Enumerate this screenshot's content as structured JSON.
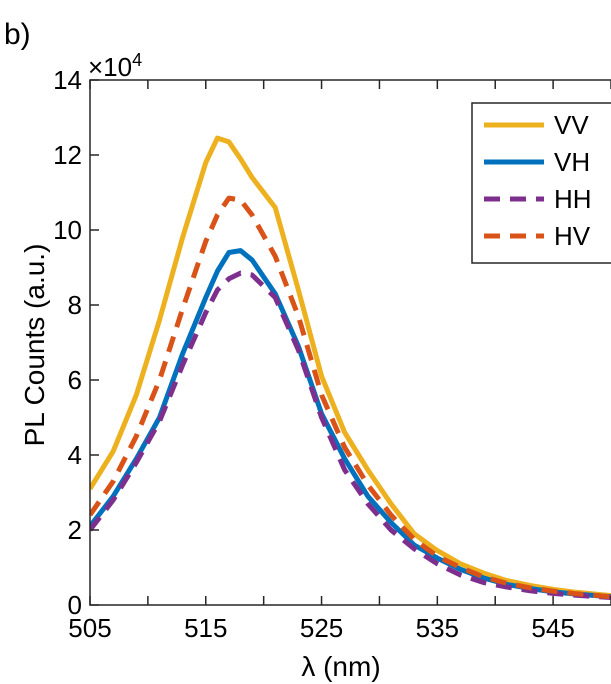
{
  "panel_label": "b)",
  "chart_data": {
    "type": "line",
    "xlabel": "λ (nm)",
    "ylabel": "PL Counts (a.u.)",
    "y_exponent": "×10",
    "y_exponent_power": "4",
    "xlim": [
      505,
      550
    ],
    "ylim": [
      0,
      14
    ],
    "xticks": [
      505,
      515,
      525,
      535,
      545
    ],
    "yticks": [
      0,
      2,
      4,
      6,
      8,
      10,
      12,
      14
    ],
    "grid": false,
    "legend_position": "top-right",
    "x": [
      505,
      507,
      509,
      511,
      513,
      515,
      516,
      517,
      518,
      519,
      521,
      523,
      525,
      527,
      529,
      531,
      533,
      535,
      537,
      539,
      541,
      543,
      545,
      547,
      550
    ],
    "series": [
      {
        "name": "VV",
        "color": "#EDB120",
        "dash": "solid",
        "values": [
          3.1,
          4.1,
          5.6,
          7.6,
          9.8,
          11.8,
          12.45,
          12.35,
          11.9,
          11.4,
          10.6,
          8.4,
          6.1,
          4.6,
          3.6,
          2.7,
          1.9,
          1.45,
          1.1,
          0.85,
          0.65,
          0.52,
          0.42,
          0.34,
          0.25
        ]
      },
      {
        "name": "VH",
        "color": "#0072BD",
        "dash": "solid",
        "values": [
          2.1,
          2.9,
          3.9,
          5.0,
          6.7,
          8.2,
          8.9,
          9.4,
          9.45,
          9.2,
          8.3,
          6.9,
          5.1,
          3.9,
          2.9,
          2.2,
          1.6,
          1.25,
          0.95,
          0.72,
          0.55,
          0.44,
          0.35,
          0.29,
          0.22
        ]
      },
      {
        "name": "HH",
        "color": "#7E2F8E",
        "dash": "dashed",
        "values": [
          2.0,
          2.8,
          3.8,
          4.9,
          6.4,
          7.8,
          8.4,
          8.7,
          8.85,
          8.8,
          8.2,
          6.8,
          5.0,
          3.6,
          2.7,
          2.0,
          1.5,
          1.1,
          0.8,
          0.6,
          0.48,
          0.38,
          0.31,
          0.26,
          0.2
        ]
      },
      {
        "name": "HV",
        "color": "#D95319",
        "dash": "dashed",
        "values": [
          2.4,
          3.3,
          4.5,
          6.0,
          7.9,
          9.7,
          10.4,
          10.85,
          10.8,
          10.4,
          9.3,
          7.7,
          5.6,
          4.2,
          3.2,
          2.4,
          1.75,
          1.3,
          1.0,
          0.75,
          0.58,
          0.46,
          0.37,
          0.3,
          0.22
        ]
      }
    ]
  }
}
